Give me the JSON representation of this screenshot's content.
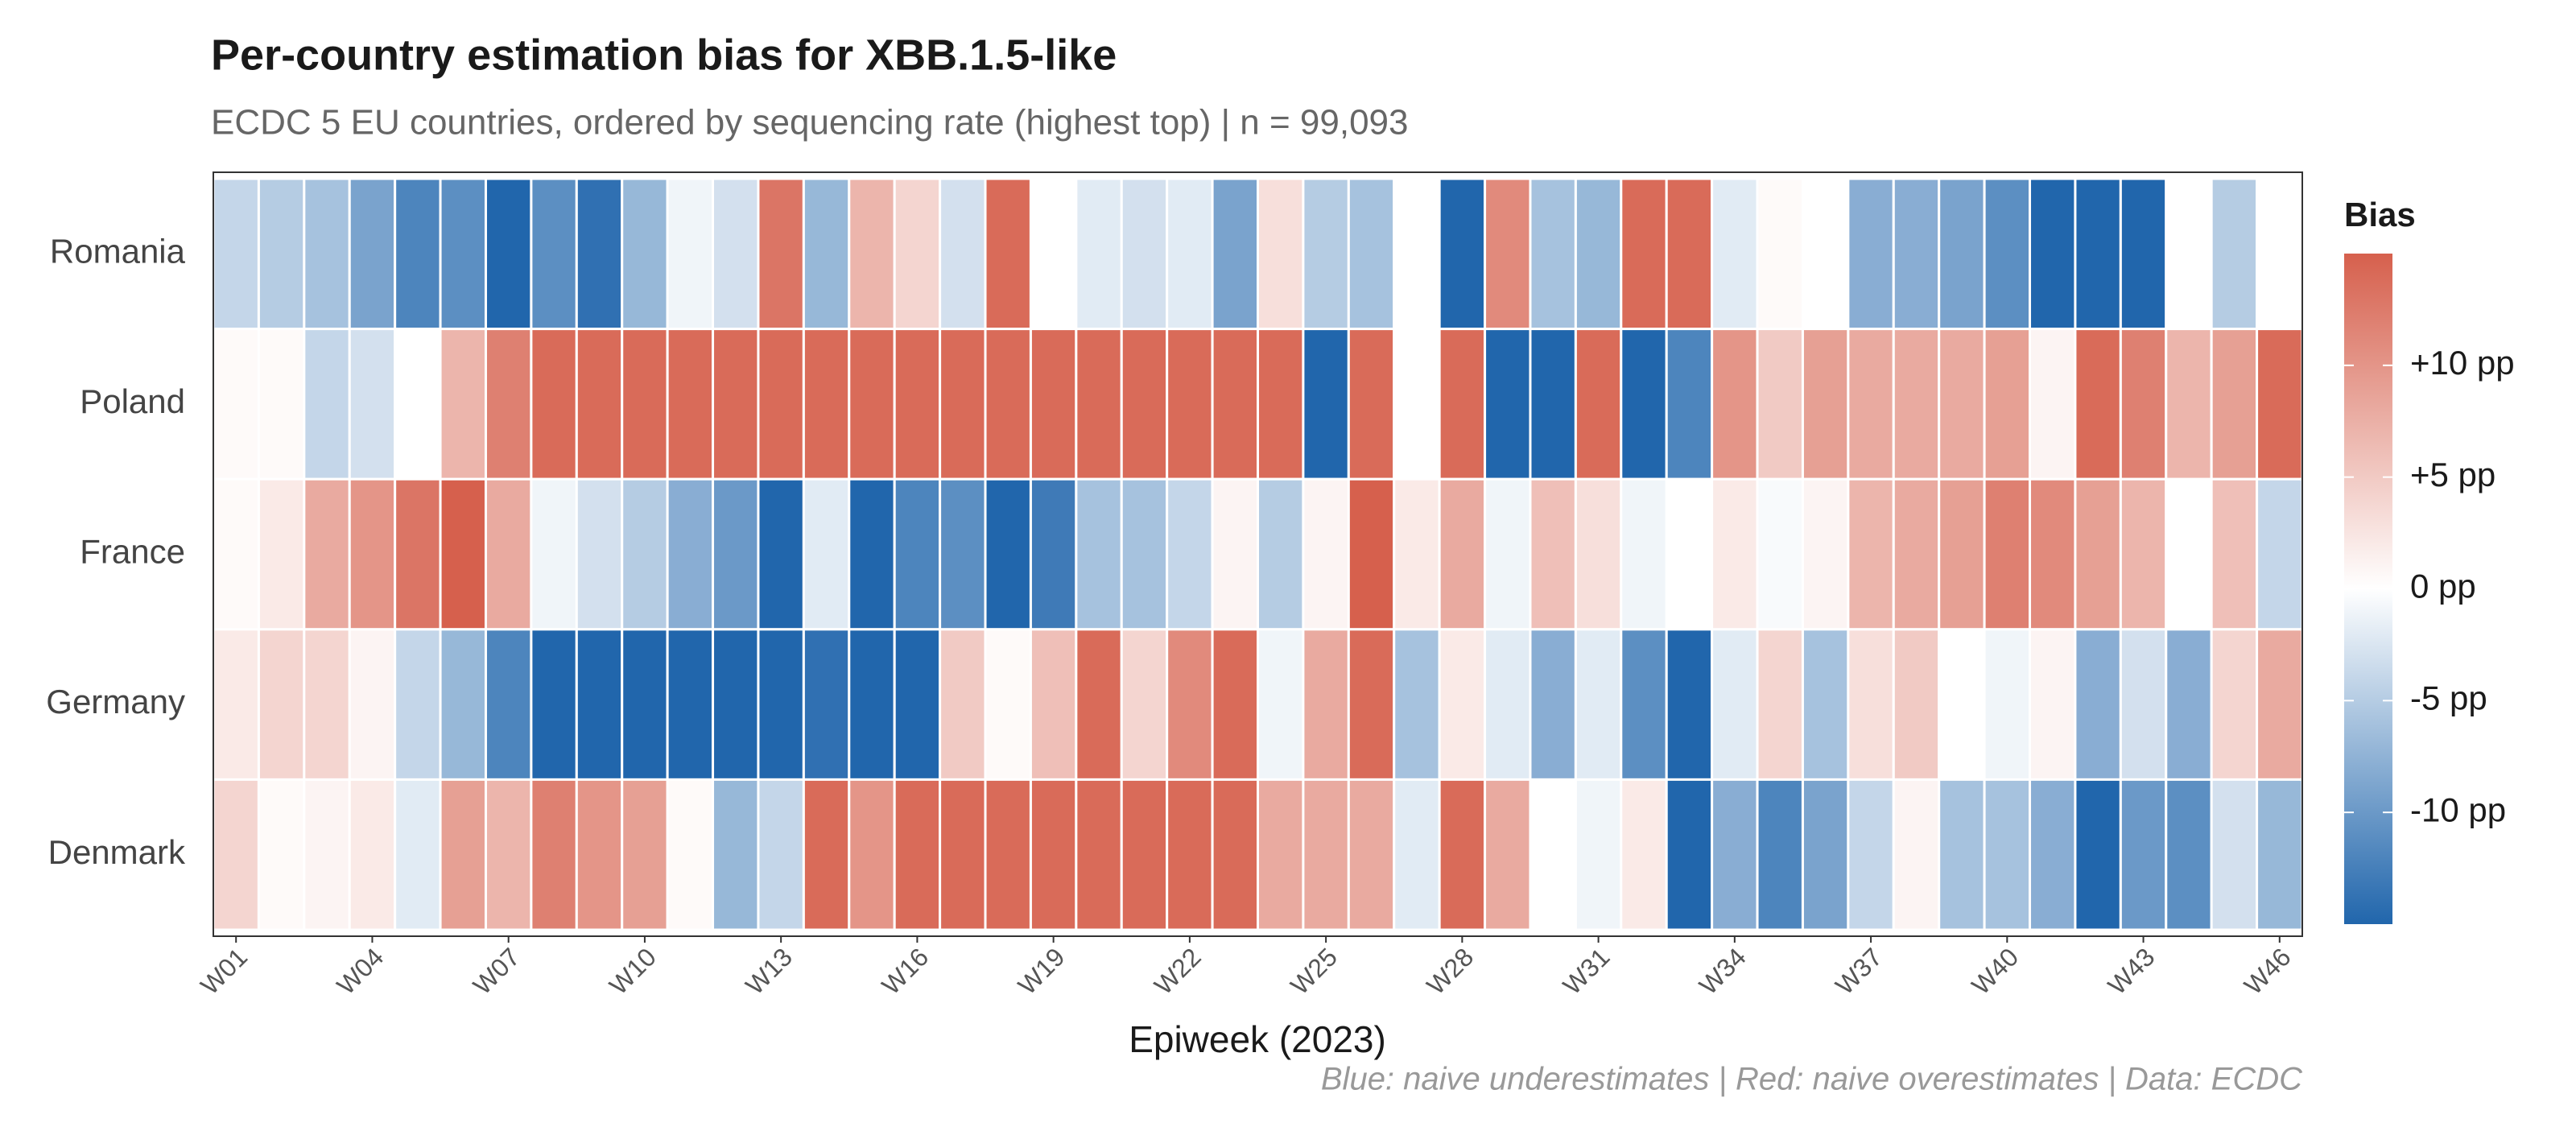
{
  "chart_data": {
    "type": "heatmap",
    "title": "Per-country estimation bias for XBB.1.5-like",
    "subtitle": "ECDC 5 EU countries, ordered by sequencing rate (highest top) | n = 99,093",
    "x_label": "Epiweek (2023)",
    "caption": "Blue: naive underestimates | Red: naive overestimates | Data: ECDC",
    "categories": [
      "W01",
      null,
      null,
      "W04",
      null,
      null,
      "W07",
      null,
      null,
      "W10",
      null,
      null,
      "W13",
      null,
      null,
      "W16",
      null,
      null,
      "W19",
      null,
      null,
      "W22",
      null,
      null,
      "W25",
      null,
      null,
      "W28",
      null,
      null,
      "W31",
      null,
      null,
      "W34",
      null,
      null,
      "W37",
      null,
      null,
      "W40",
      null,
      null,
      "W43",
      null,
      null,
      "W46"
    ],
    "series": [
      {
        "name": "Romania",
        "values": [
          -4,
          -5,
          -6,
          -9,
          -12,
          -11,
          -15,
          -11,
          -14,
          -7,
          -1,
          -3,
          13,
          -7,
          7,
          4,
          -3,
          14,
          0,
          -2,
          -3,
          -2,
          -9,
          3,
          -5,
          -6,
          0,
          -15,
          11,
          -6,
          -7,
          14,
          14,
          -2,
          0.5,
          0,
          -8,
          -8,
          -9,
          -11,
          -15,
          -15,
          -15,
          0,
          -5,
          0
        ]
      },
      {
        "name": "Poland",
        "values": [
          0.5,
          0.5,
          -4,
          -3,
          0,
          7,
          12,
          14,
          14,
          14,
          14,
          14,
          14,
          14,
          14,
          14,
          14,
          14,
          14,
          14,
          14,
          14,
          14,
          14,
          -15,
          14,
          0,
          14,
          -15,
          -15,
          14,
          -15,
          -12,
          10,
          5,
          9,
          8,
          8,
          8,
          9,
          1,
          14,
          12,
          7,
          9,
          14
        ]
      },
      {
        "name": "France",
        "values": [
          0.5,
          2,
          8,
          10,
          13,
          15,
          8,
          -1,
          -3,
          -5,
          -8,
          -10,
          -15,
          -2,
          -15,
          -12,
          -11,
          -15,
          -13,
          -6,
          -6,
          -4,
          1,
          -5,
          1,
          15,
          2,
          8,
          -1,
          6,
          3,
          -1,
          0,
          2,
          -0.5,
          1,
          7,
          8,
          9,
          12,
          11,
          9,
          7,
          0,
          6,
          -4
        ]
      },
      {
        "name": "Germany",
        "values": [
          2,
          4,
          4,
          1,
          -4,
          -7,
          -12,
          -15,
          -15,
          -15,
          -15,
          -15,
          -15,
          -14,
          -15,
          -15,
          5,
          0.5,
          6,
          14,
          4,
          11,
          14,
          -1,
          8,
          14,
          -6,
          2,
          -2,
          -8,
          -2,
          -11,
          -15,
          -2,
          4,
          -6,
          3,
          5,
          0,
          -1,
          1,
          -8,
          -3,
          -8,
          4,
          8
        ]
      },
      {
        "name": "Denmark",
        "values": [
          4,
          0.5,
          1,
          2,
          -2,
          9,
          7,
          12,
          10,
          9,
          0.5,
          -7,
          -4,
          14,
          10,
          14,
          14,
          14,
          14,
          14,
          14,
          14,
          14,
          8,
          8,
          8,
          -2,
          14,
          8,
          0,
          -1,
          2,
          -15,
          -8,
          -12,
          -9,
          -4,
          1,
          -6,
          -6,
          -8,
          -15,
          -10,
          -11,
          -3,
          -7
        ]
      }
    ],
    "colorbar": {
      "title": "Bias",
      "lim": [
        -15,
        15
      ],
      "colors": [
        "#2166ac",
        "#ffffff",
        "#d6604d"
      ],
      "ticks": [
        {
          "value": -10,
          "label": "-10 pp"
        },
        {
          "value": -5,
          "label": "-5 pp"
        },
        {
          "value": 0,
          "label": "0 pp"
        },
        {
          "value": 5,
          "label": "+5 pp"
        },
        {
          "value": 10,
          "label": "+10 pp"
        }
      ]
    }
  }
}
